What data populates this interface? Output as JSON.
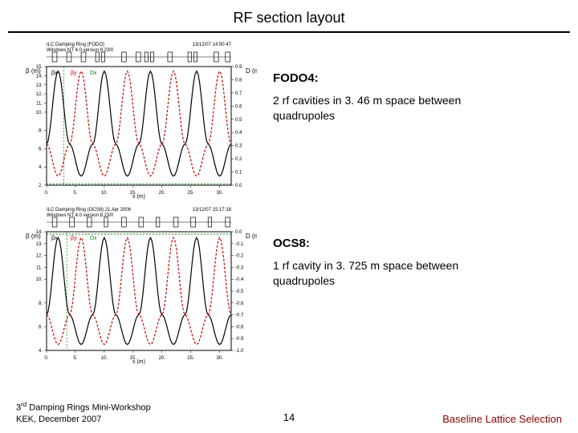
{
  "title": "RF section layout",
  "sections": [
    {
      "heading": "FODO4:",
      "desc": "2 rf cavities in 3. 46 m space between quadrupoles"
    },
    {
      "heading": "OCS8:",
      "desc": "1 rf cavity in 3. 725 m space between quadrupoles"
    }
  ],
  "footer": {
    "left_line1_pre": "3",
    "left_line1_sup": "rd",
    "left_line1_post": " Damping Rings Mini-Workshop",
    "left_line2": "KEK, December 2007",
    "page": "14",
    "right": "Baseline Lattice Selection"
  },
  "chart1": {
    "type": "line",
    "title_left": "ILC Damping Ring (FODO)",
    "title_sub": "Windows NT 4.0 version 8.23/0",
    "title_right": "13/12/07 14:50:47",
    "xlim": [
      0,
      32
    ],
    "xticks": [
      0,
      5,
      10,
      15,
      20,
      25,
      30
    ],
    "left_ylim": [
      2,
      15
    ],
    "left_yticks": [
      2,
      4,
      6,
      8,
      10,
      11,
      12,
      13,
      14,
      15
    ],
    "left_ylabel": "β (m)",
    "right_ylim": [
      0,
      0.9
    ],
    "right_yticks": [
      0.0,
      0.1,
      0.2,
      0.3,
      0.4,
      0.5,
      0.6,
      0.7,
      0.8,
      0.9
    ],
    "right_ylabel": "D (m)",
    "axis_text_color": "#000000",
    "axis_tick_fontsize": 6,
    "bg": "#ffffff",
    "frame_color": "#000000",
    "grid": false,
    "lattice_blocks": [
      {
        "x": 1,
        "w": 0.8
      },
      {
        "x": 3.5,
        "w": 0.8
      },
      {
        "x": 6,
        "w": 0.8
      },
      {
        "x": 8.5,
        "w": 0.6
      },
      {
        "x": 9.5,
        "w": 0.6
      },
      {
        "x": 13,
        "w": 0.8
      },
      {
        "x": 15.5,
        "w": 0.8
      },
      {
        "x": 17,
        "w": 0.6
      },
      {
        "x": 18,
        "w": 0.6
      },
      {
        "x": 21,
        "w": 0.8
      },
      {
        "x": 24.5,
        "w": 0.6
      },
      {
        "x": 25.5,
        "w": 0.6
      },
      {
        "x": 29,
        "w": 0.8
      },
      {
        "x": 31,
        "w": 0.8
      }
    ],
    "lattice_color": "#000000",
    "series": [
      {
        "name": "βx",
        "color": "#000000",
        "width": 1.2,
        "dash": "",
        "pts": [
          [
            0,
            6.5
          ],
          [
            2,
            14.5
          ],
          [
            4,
            6.5
          ],
          [
            6,
            3
          ],
          [
            8,
            6.5
          ],
          [
            10,
            14.5
          ],
          [
            12,
            6.5
          ],
          [
            14,
            3
          ],
          [
            16,
            6.5
          ],
          [
            18,
            14.5
          ],
          [
            20,
            6.5
          ],
          [
            22,
            3
          ],
          [
            24,
            6.5
          ],
          [
            26,
            14.5
          ],
          [
            28,
            6.5
          ],
          [
            30,
            3
          ],
          [
            32,
            6.5
          ]
        ]
      },
      {
        "name": "βy",
        "color": "#cc0000",
        "width": 1.2,
        "dash": "3,2",
        "pts": [
          [
            0,
            6.5
          ],
          [
            2,
            3
          ],
          [
            4,
            6.5
          ],
          [
            6,
            14.5
          ],
          [
            8,
            6.5
          ],
          [
            10,
            3
          ],
          [
            12,
            6.5
          ],
          [
            14,
            14.5
          ],
          [
            16,
            6.5
          ],
          [
            18,
            3
          ],
          [
            20,
            6.5
          ],
          [
            22,
            14.5
          ],
          [
            24,
            6.5
          ],
          [
            26,
            3
          ],
          [
            28,
            6.5
          ],
          [
            30,
            14.5
          ],
          [
            32,
            6.5
          ]
        ]
      },
      {
        "name": "Dx",
        "color": "#008800",
        "width": 1.0,
        "dash": "2,2",
        "axis": "right",
        "pts": [
          [
            0,
            0.01
          ],
          [
            4,
            0.01
          ],
          [
            8,
            0.01
          ],
          [
            12,
            0.01
          ],
          [
            16,
            0.01
          ],
          [
            20,
            0.01
          ],
          [
            24,
            0.01
          ],
          [
            28,
            0.01
          ],
          [
            32,
            0.01
          ]
        ]
      }
    ],
    "legend_labels": [
      "βx",
      "βy",
      "Dx"
    ],
    "legend_colors": [
      "#000000",
      "#cc0000",
      "#008800"
    ],
    "legend_fontsize": 7,
    "x_cursor": 3.0,
    "cursor_color": "#008800"
  },
  "chart2": {
    "type": "line",
    "title_left": "ILC Damping Ring (OCS8) 21 Apr 2006",
    "title_sub": "Windows NT 4.0 version 8.23/0",
    "title_right": "13/12/07 15:17:18",
    "xlim": [
      0,
      32
    ],
    "xticks": [
      0,
      5,
      10,
      15,
      20,
      25,
      30
    ],
    "left_ylim": [
      4,
      14
    ],
    "left_yticks": [
      4,
      6,
      8,
      10,
      11,
      12,
      13,
      14
    ],
    "left_ylabel": "β (m)",
    "right_ylim": [
      -1.0,
      0.0
    ],
    "right_yticks": [
      -1.0,
      -0.9,
      -0.8,
      -0.7,
      -0.6,
      -0.5,
      -0.4,
      -0.3,
      -0.2,
      -0.1,
      0.0
    ],
    "right_ylabel": "D (m)",
    "axis_text_color": "#000000",
    "axis_tick_fontsize": 6,
    "bg": "#ffffff",
    "frame_color": "#000000",
    "grid": false,
    "lattice_blocks": [
      {
        "x": 1,
        "w": 0.8
      },
      {
        "x": 4,
        "w": 0.8
      },
      {
        "x": 7,
        "w": 0.8
      },
      {
        "x": 10,
        "w": 0.6
      },
      {
        "x": 13,
        "w": 0.8
      },
      {
        "x": 16,
        "w": 0.8
      },
      {
        "x": 19,
        "w": 0.6
      },
      {
        "x": 22,
        "w": 0.8
      },
      {
        "x": 25,
        "w": 0.8
      },
      {
        "x": 28,
        "w": 0.6
      },
      {
        "x": 31,
        "w": 0.8
      }
    ],
    "lattice_color": "#000000",
    "series": [
      {
        "name": "βx",
        "color": "#000000",
        "width": 1.2,
        "dash": "",
        "pts": [
          [
            0,
            7
          ],
          [
            2,
            13.5
          ],
          [
            4,
            7
          ],
          [
            6,
            4.5
          ],
          [
            8,
            7
          ],
          [
            10,
            13.5
          ],
          [
            12,
            7
          ],
          [
            14,
            4.5
          ],
          [
            16,
            7
          ],
          [
            18,
            13.5
          ],
          [
            20,
            7
          ],
          [
            22,
            4.5
          ],
          [
            24,
            7
          ],
          [
            26,
            13.5
          ],
          [
            28,
            7
          ],
          [
            30,
            4.5
          ],
          [
            32,
            7
          ]
        ]
      },
      {
        "name": "βy",
        "color": "#cc0000",
        "width": 1.2,
        "dash": "3,2",
        "pts": [
          [
            0,
            7
          ],
          [
            2,
            4.5
          ],
          [
            4,
            7
          ],
          [
            6,
            13.5
          ],
          [
            8,
            7
          ],
          [
            10,
            4.5
          ],
          [
            12,
            7
          ],
          [
            14,
            13.5
          ],
          [
            16,
            7
          ],
          [
            18,
            4.5
          ],
          [
            20,
            7
          ],
          [
            22,
            13.5
          ],
          [
            24,
            7
          ],
          [
            26,
            4.5
          ],
          [
            28,
            7
          ],
          [
            30,
            13.5
          ],
          [
            32,
            7
          ]
        ]
      },
      {
        "name": "Dx",
        "color": "#008800",
        "width": 1.0,
        "dash": "2,2",
        "axis": "right",
        "pts": [
          [
            0,
            -0.02
          ],
          [
            32,
            -0.02
          ]
        ]
      }
    ],
    "legend_labels": [
      "βx",
      "βy",
      "Dx"
    ],
    "legend_colors": [
      "#000000",
      "#cc0000",
      "#008800"
    ],
    "legend_fontsize": 7,
    "x_cursor": 3.5,
    "cursor_color": "#008800"
  }
}
